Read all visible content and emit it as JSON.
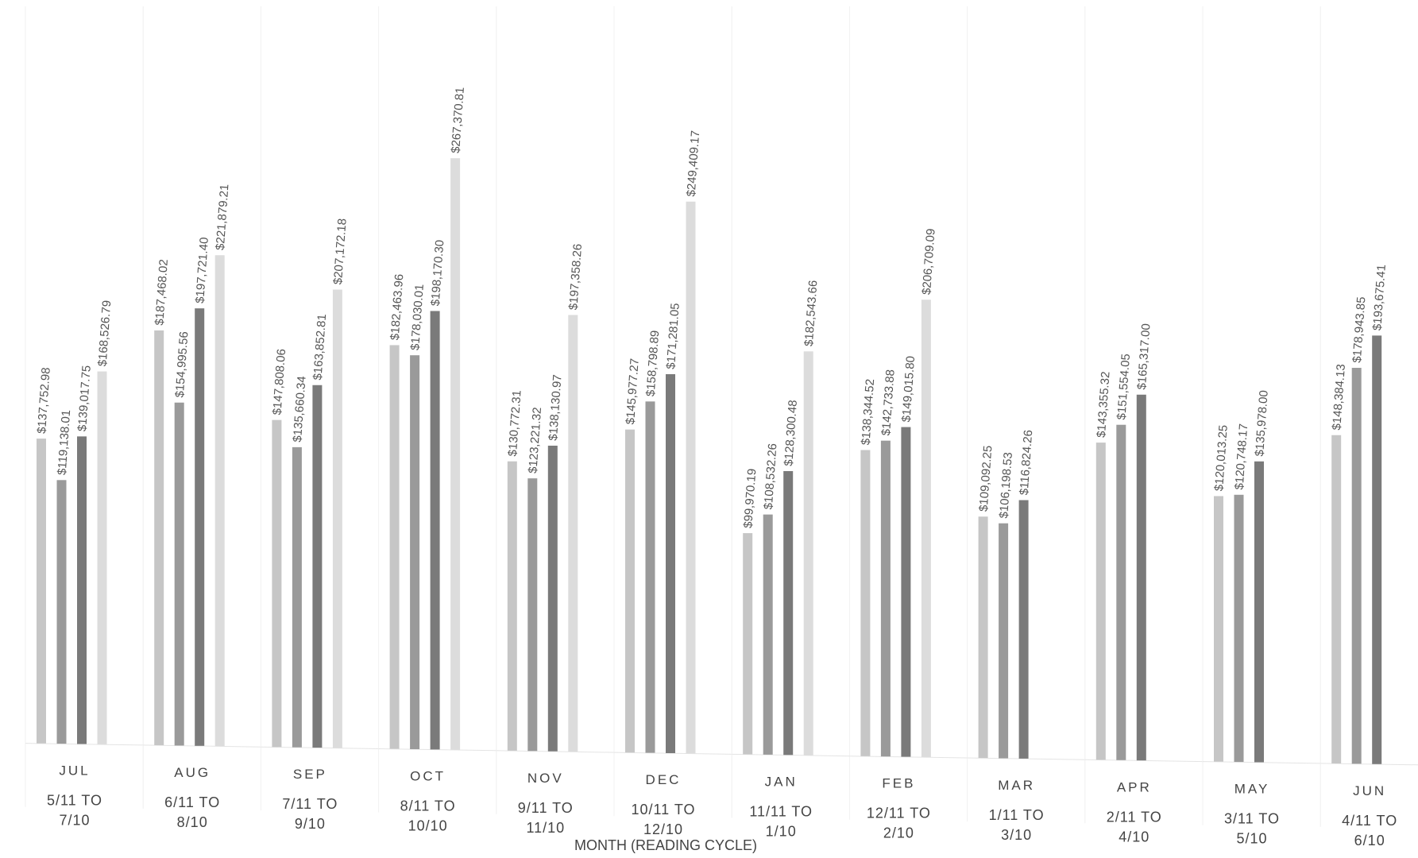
{
  "chart_data": {
    "type": "bar",
    "title": "",
    "xlabel": "MONTH (READING CYCLE)",
    "ylabel": "",
    "ylim": [
      0,
      300000
    ],
    "grid": false,
    "legend": "none",
    "categories": [
      "JUL",
      "AUG",
      "SEP",
      "OCT",
      "NOV",
      "DEC",
      "JAN",
      "FEB",
      "MAR",
      "APR",
      "MAY",
      "JUN"
    ],
    "reading_cycles": [
      [
        "5/11 TO",
        "7/10"
      ],
      [
        "6/11 TO",
        "8/10"
      ],
      [
        "7/11 TO",
        "9/10"
      ],
      [
        "8/11 TO",
        "10/10"
      ],
      [
        "9/11 TO",
        "11/10"
      ],
      [
        "10/11 TO",
        "12/10"
      ],
      [
        "11/11 TO",
        "1/10"
      ],
      [
        "12/11 TO",
        "2/10"
      ],
      [
        "1/11 TO",
        "3/10"
      ],
      [
        "2/11 TO",
        "4/10"
      ],
      [
        "3/11 TO",
        "5/10"
      ],
      [
        "4/11 TO",
        "6/10"
      ]
    ],
    "colors": [
      "#c6c6c6",
      "#9a9a9a",
      "#7a7a7a",
      "#dcdcdc"
    ],
    "series": [
      {
        "values": [
          137752.98,
          187468.02,
          147808.06,
          182463.96,
          130772.31,
          145977.27,
          99970.19,
          138344.52,
          109092.25,
          143355.32,
          120013.25,
          148384.13
        ],
        "labels": [
          "$137,752.98",
          "$187,468.02",
          "$147,808.06",
          "$182,463.96",
          "$130,772.31",
          "$145,977.27",
          "$99,970.19",
          "$138,344.52",
          "$109,092.25",
          "$143,355.32",
          "$120,013.25",
          "$148,384.13"
        ]
      },
      {
        "values": [
          119138.01,
          154995.56,
          135660.34,
          178030.01,
          123221.32,
          158798.89,
          108532.26,
          142733.88,
          106198.53,
          151554.05,
          120748.17,
          178943.85
        ],
        "labels": [
          "$119,138.01",
          "$154,995.56",
          "$135,660.34",
          "$178,030.01",
          "$123,221.32",
          "$158,798.89",
          "$108,532.26",
          "$142,733.88",
          "$106,198.53",
          "$151,554.05",
          "$120,748.17",
          "$178,943.85"
        ]
      },
      {
        "values": [
          139017.75,
          197721.4,
          163852.81,
          198170.3,
          138130.97,
          171281.05,
          128300.48,
          149015.8,
          116824.26,
          165317.0,
          135978.0,
          193675.41
        ],
        "labels": [
          "$139,017.75",
          "$197,721.40",
          "$163,852.81",
          "$198,170.30",
          "$138,130.97",
          "$171,281.05",
          "$128,300.48",
          "$149,015.80",
          "$116,824.26",
          "$165,317.00",
          "$135,978.00",
          "$193,675.41"
        ]
      },
      {
        "values": [
          168526.79,
          221879.21,
          207172.18,
          267370.81,
          197358.26,
          249409.17,
          182543.66,
          206709.09,
          null,
          null,
          null,
          null
        ],
        "labels": [
          "$168,526.79",
          "$221,879.21",
          "$207,172.18",
          "$267,370.81",
          "$197,358.26",
          "$249,409.17",
          "$182,543.66",
          "$206,709.09",
          null,
          null,
          null,
          null
        ]
      }
    ]
  }
}
